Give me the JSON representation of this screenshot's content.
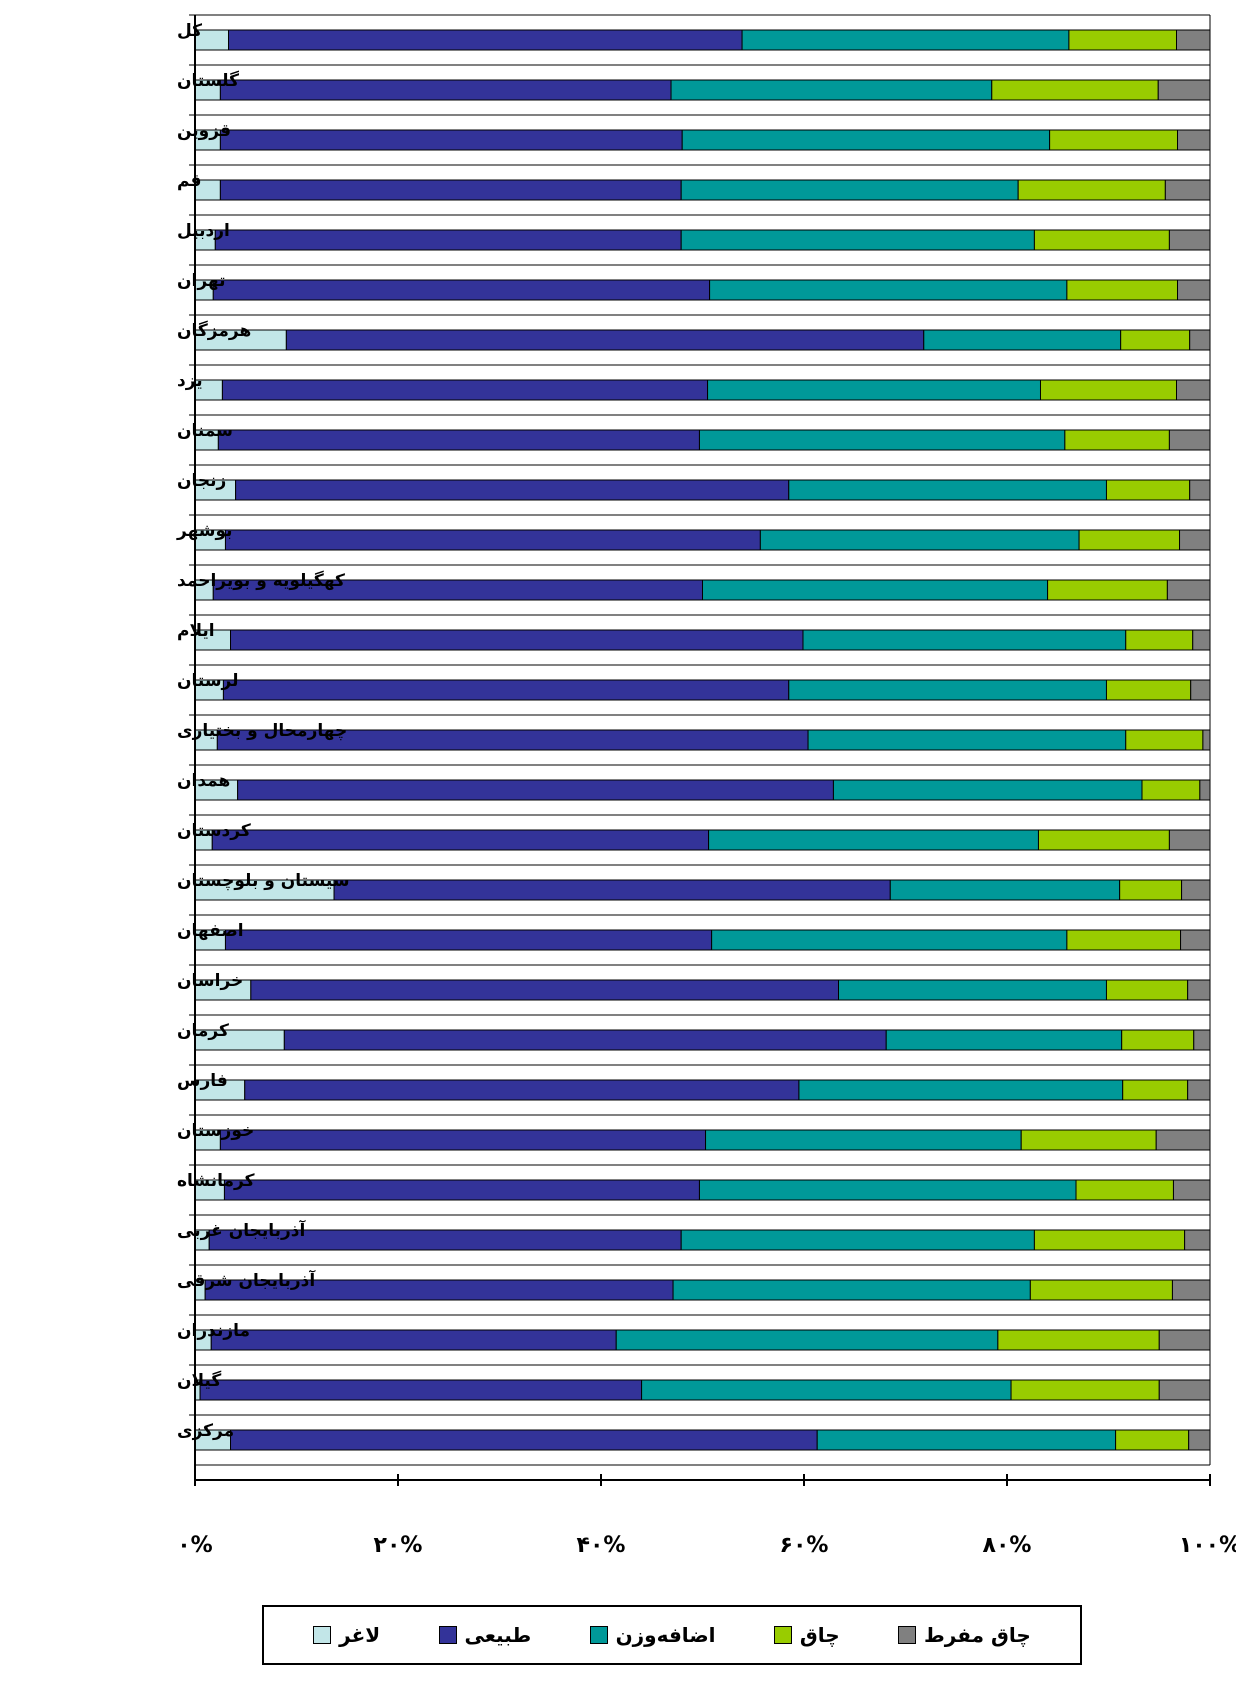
{
  "chart_data": {
    "type": "bar",
    "orientation": "horizontal",
    "stacked": "percent",
    "categories": [
      "کل",
      "گلستان",
      "قزوین",
      "قم",
      "اردبیل",
      "تهران",
      "هرمزگان",
      "یزد",
      "سمنان",
      "زنجان",
      "بوشهر",
      "کهگیلویه و بویراحمد",
      "ایلام",
      "لرستان",
      "چهارمحال و بختیاری",
      "همدان",
      "کردستان",
      "سیستان و بلوچستان",
      "اصفهان",
      "خراسان",
      "کرمان",
      "فارس",
      "خوزستان",
      "کرمانشاه",
      "آذربایجان غربی",
      "آذربایجان شرقی",
      "مازندران",
      "گیلان",
      "مرکزی"
    ],
    "series": [
      {
        "name": "لاغر",
        "color": "#c2e6e8",
        "values": [
          3.3,
          2.5,
          2.5,
          2.5,
          2.0,
          1.8,
          9.0,
          2.7,
          2.3,
          4.0,
          3.0,
          1.8,
          3.5,
          2.8,
          2.2,
          4.2,
          1.7,
          13.7,
          3.0,
          5.5,
          8.8,
          4.9,
          2.5,
          2.9,
          1.4,
          1.0,
          1.6,
          0.5,
          3.5
        ]
      },
      {
        "name": "طبیعی",
        "color": "#333399",
        "values": [
          50.6,
          44.4,
          45.5,
          45.4,
          45.9,
          48.9,
          62.8,
          47.8,
          47.4,
          54.5,
          52.7,
          48.2,
          56.4,
          55.7,
          58.2,
          58.7,
          48.9,
          54.8,
          47.9,
          57.9,
          59.3,
          54.6,
          47.8,
          46.8,
          46.5,
          46.1,
          39.9,
          43.5,
          57.8
        ]
      },
      {
        "name": "اضافه‌وزن",
        "color": "#009999",
        "values": [
          32.2,
          31.6,
          36.2,
          33.2,
          34.8,
          35.2,
          19.4,
          32.8,
          36.0,
          31.3,
          31.4,
          34.0,
          31.8,
          31.3,
          31.3,
          30.4,
          32.5,
          22.6,
          35.0,
          26.4,
          23.2,
          31.9,
          31.1,
          37.1,
          34.8,
          35.2,
          37.6,
          36.4,
          29.4
        ]
      },
      {
        "name": "چاق",
        "color": "#99cc00",
        "values": [
          10.6,
          16.4,
          12.6,
          14.5,
          13.3,
          10.9,
          6.8,
          13.4,
          10.3,
          8.2,
          9.9,
          11.8,
          6.6,
          8.3,
          7.6,
          5.7,
          12.9,
          6.1,
          11.2,
          8.0,
          7.1,
          6.4,
          13.3,
          9.6,
          14.8,
          14.0,
          15.9,
          14.6,
          7.2
        ]
      },
      {
        "name": "چاق مفرط",
        "color": "#808080",
        "values": [
          3.3,
          5.1,
          3.2,
          4.4,
          4.0,
          3.2,
          2.0,
          3.3,
          4.0,
          2.0,
          3.0,
          4.2,
          1.7,
          1.9,
          0.7,
          1.0,
          4.0,
          2.8,
          2.9,
          2.2,
          1.6,
          2.2,
          5.3,
          3.6,
          2.5,
          3.7,
          5.0,
          5.0,
          2.1
        ]
      }
    ],
    "xlim": [
      0,
      100
    ],
    "x_ticks": [
      0,
      20,
      40,
      60,
      80,
      100
    ],
    "x_tick_labels": [
      "۰%",
      "۲۰%",
      "۴۰%",
      "۶۰%",
      "۸۰%",
      "۱۰۰%"
    ],
    "grid": true,
    "legend_position": "bottom",
    "title": "",
    "xlabel": "",
    "ylabel": ""
  }
}
